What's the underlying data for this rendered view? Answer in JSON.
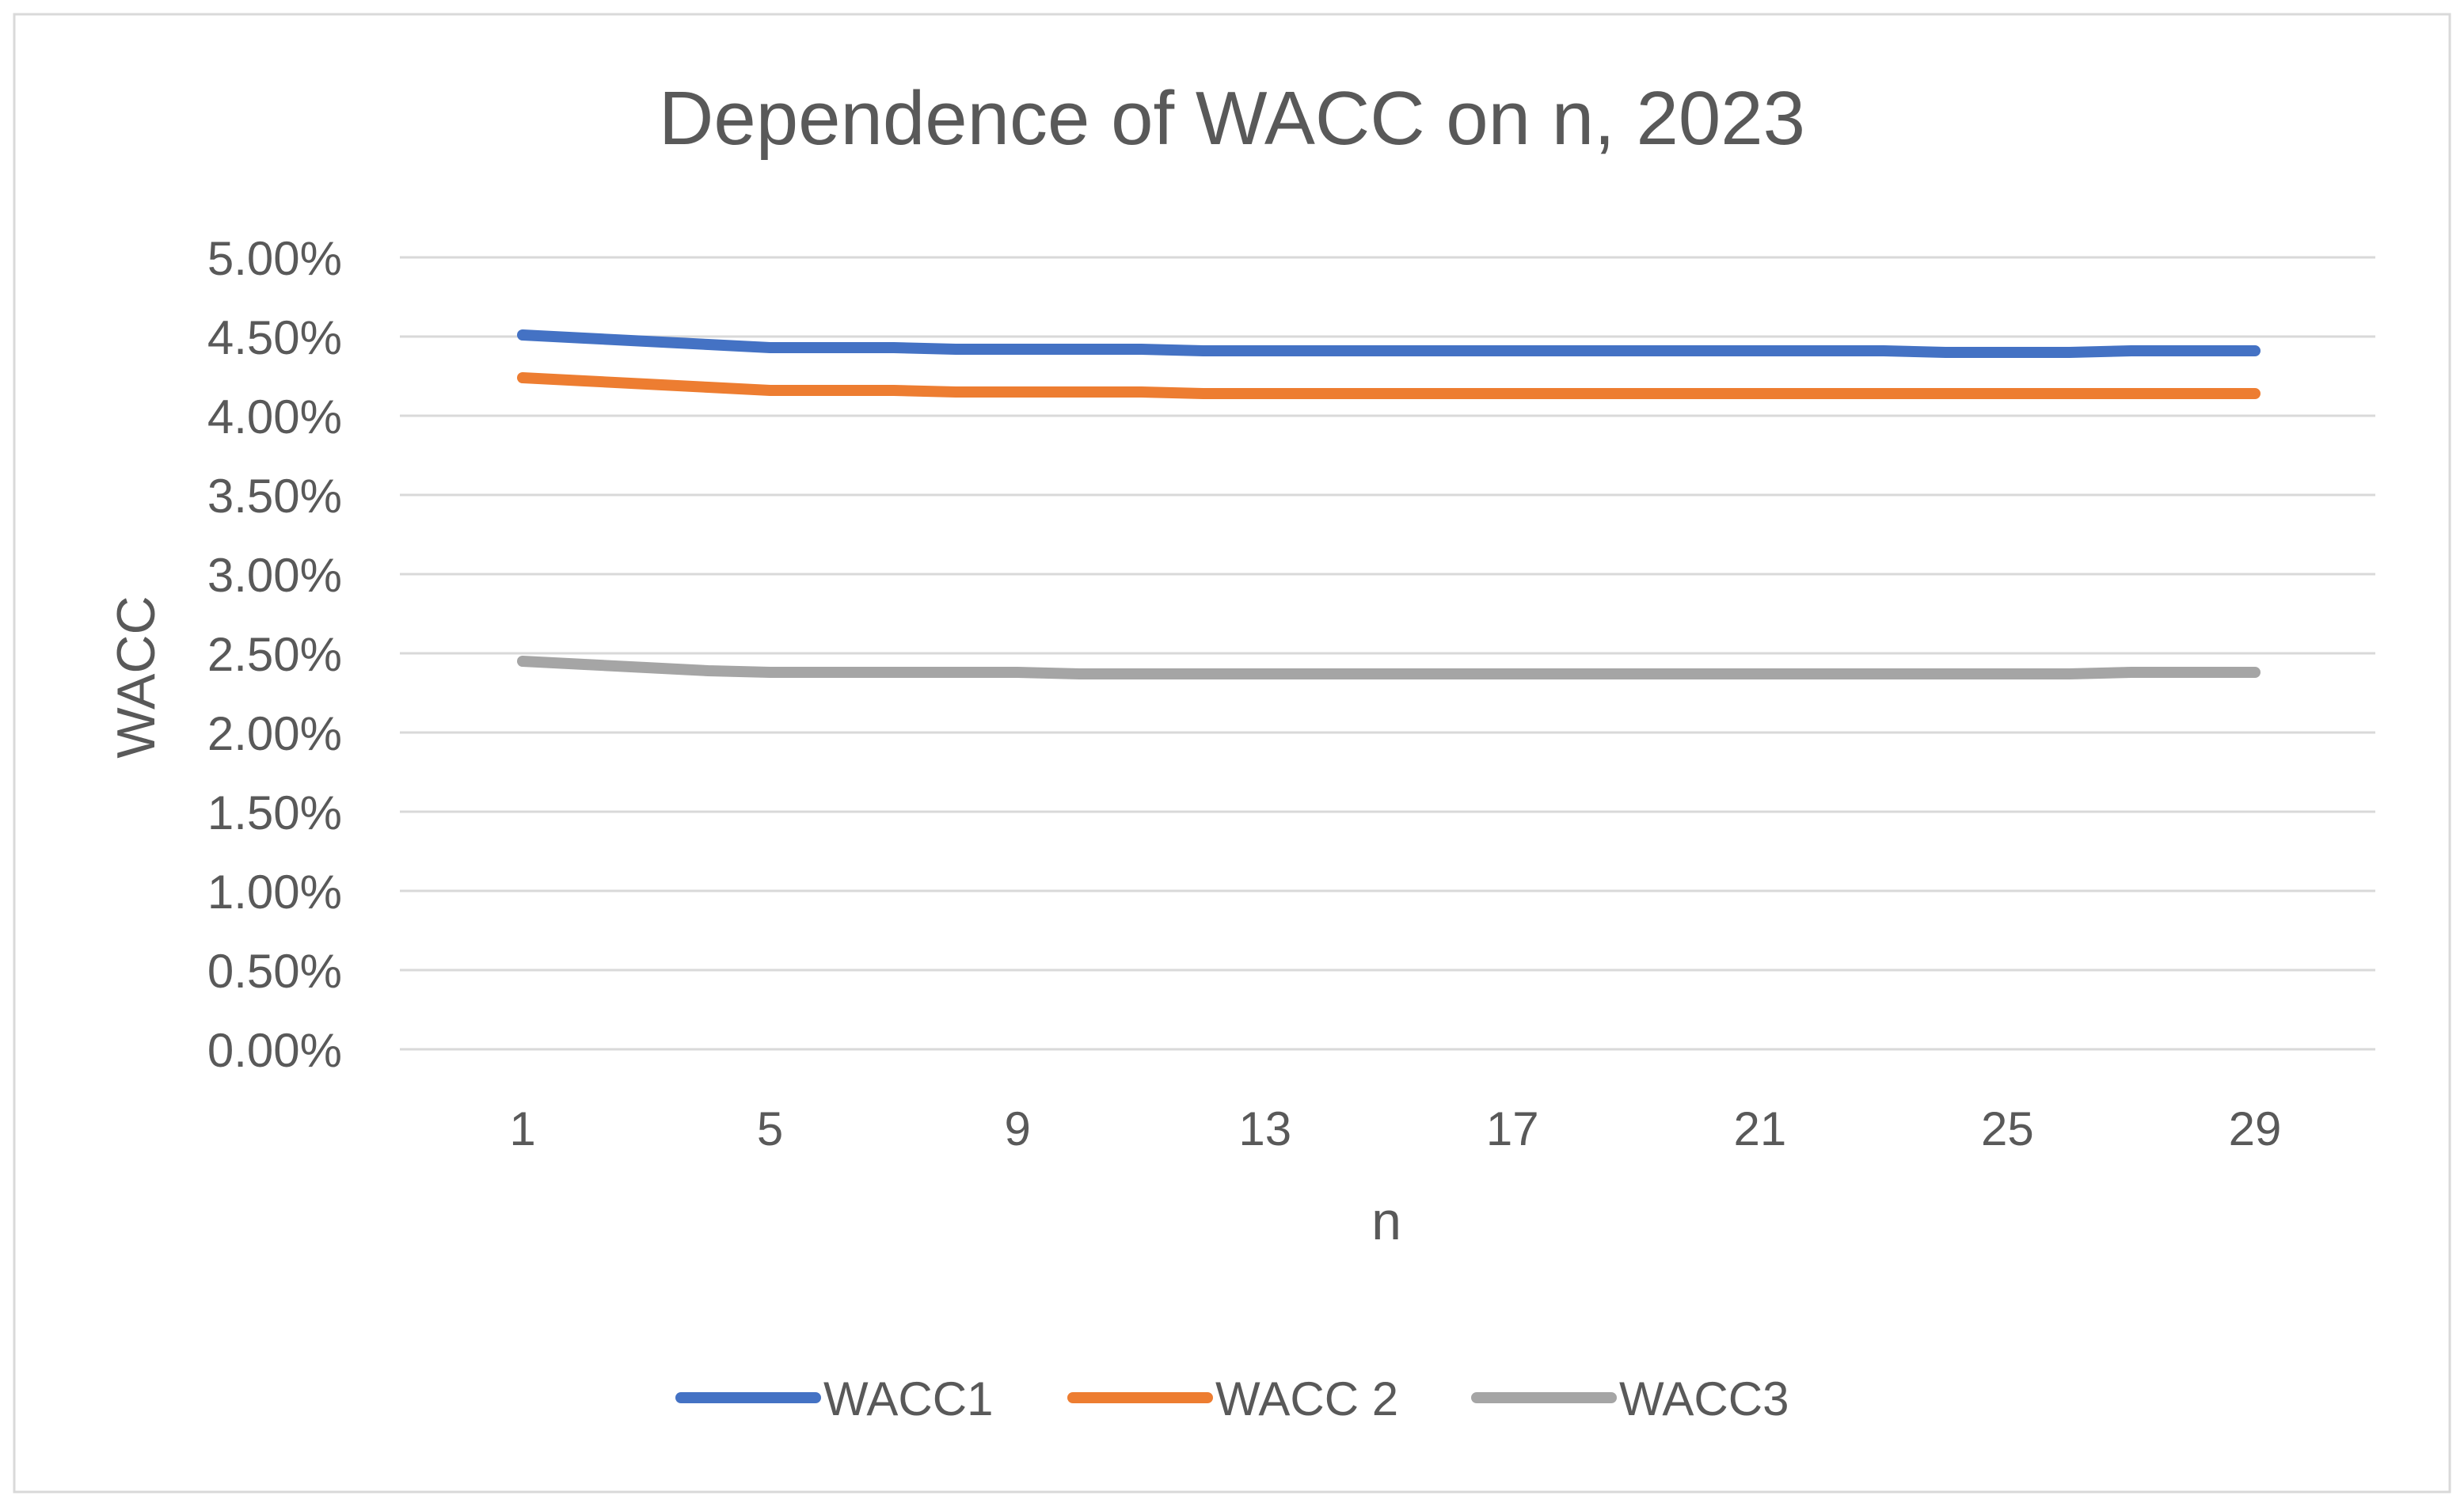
{
  "chart_data": {
    "type": "line",
    "title": "Dependence of WACC on n, 2023",
    "xlabel": "n",
    "ylabel": "WACC",
    "x": [
      1,
      2,
      3,
      4,
      5,
      6,
      7,
      8,
      9,
      10,
      11,
      12,
      13,
      14,
      15,
      16,
      17,
      18,
      19,
      20,
      21,
      22,
      23,
      24,
      25,
      26,
      27,
      28,
      29
    ],
    "x_tick_labels": [
      "1",
      "5",
      "9",
      "13",
      "17",
      "21",
      "25",
      "29"
    ],
    "y_tick_labels": [
      "0.00%",
      "0.50%",
      "1.00%",
      "1.50%",
      "2.00%",
      "2.50%",
      "3.00%",
      "3.50%",
      "4.00%",
      "4.50%",
      "5.00%"
    ],
    "ylim": [
      0,
      0.05
    ],
    "y_step": 0.005,
    "grid": true,
    "legend_position": "bottom",
    "series": [
      {
        "name": "WACC1",
        "color": "#4472C4",
        "values": [
          0.0451,
          0.0449,
          0.0447,
          0.0445,
          0.0443,
          0.0443,
          0.0443,
          0.0442,
          0.0442,
          0.0442,
          0.0442,
          0.0441,
          0.0441,
          0.0441,
          0.0441,
          0.0441,
          0.0441,
          0.0441,
          0.0441,
          0.0441,
          0.0441,
          0.0441,
          0.0441,
          0.044,
          0.044,
          0.044,
          0.0441,
          0.0441,
          0.0441
        ]
      },
      {
        "name": "WACC 2",
        "color": "#ED7D31",
        "values": [
          0.0424,
          0.0422,
          0.042,
          0.0418,
          0.0416,
          0.0416,
          0.0416,
          0.0415,
          0.0415,
          0.0415,
          0.0415,
          0.0414,
          0.0414,
          0.0414,
          0.0414,
          0.0414,
          0.0414,
          0.0414,
          0.0414,
          0.0414,
          0.0414,
          0.0414,
          0.0414,
          0.0414,
          0.0414,
          0.0414,
          0.0414,
          0.0414,
          0.0414
        ]
      },
      {
        "name": "WACC3",
        "color": "#A5A5A5",
        "values": [
          0.0245,
          0.0243,
          0.0241,
          0.0239,
          0.0238,
          0.0238,
          0.0238,
          0.0238,
          0.0238,
          0.0237,
          0.0237,
          0.0237,
          0.0237,
          0.0237,
          0.0237,
          0.0237,
          0.0237,
          0.0237,
          0.0237,
          0.0237,
          0.0237,
          0.0237,
          0.0237,
          0.0237,
          0.0237,
          0.0237,
          0.0238,
          0.0238,
          0.0238
        ]
      }
    ]
  }
}
